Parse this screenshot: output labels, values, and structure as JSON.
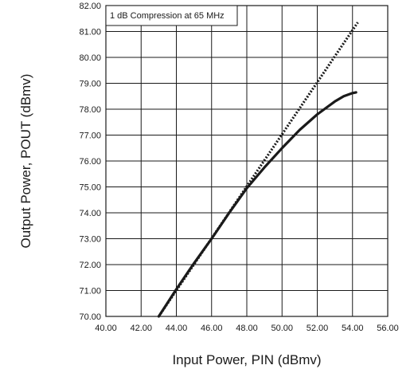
{
  "chart_data": {
    "type": "line",
    "annotation": "1 dB Compression at 65 MHz",
    "xlabel": "Input Power, PIN (dBmv)",
    "ylabel": "Output Power, POUT (dBmv)",
    "xlim": [
      40,
      56
    ],
    "ylim": [
      70,
      82
    ],
    "x_ticks": [
      "40.00",
      "42.00",
      "44.00",
      "46.00",
      "48.00",
      "50.00",
      "52.00",
      "54.00",
      "56.00"
    ],
    "y_ticks": [
      "70.00",
      "71.00",
      "72.00",
      "73.00",
      "74.00",
      "75.00",
      "76.00",
      "77.00",
      "78.00",
      "79.00",
      "80.00",
      "81.00",
      "82.00"
    ],
    "grid": true,
    "series": [
      {
        "style": "solid",
        "color": "#1a1a1a",
        "x": [
          43.0,
          44.0,
          45.0,
          46.0,
          47.0,
          48.0,
          49.0,
          50.0,
          51.0,
          52.0,
          53.0,
          53.5,
          54.0,
          54.2
        ],
        "y": [
          70.0,
          71.05,
          72.05,
          73.0,
          74.0,
          74.95,
          75.75,
          76.5,
          77.2,
          77.8,
          78.3,
          78.5,
          78.62,
          78.65
        ]
      },
      {
        "style": "dotted",
        "color": "#1a1a1a",
        "x": [
          43.0,
          54.3
        ],
        "y": [
          70.0,
          81.35
        ]
      }
    ]
  }
}
